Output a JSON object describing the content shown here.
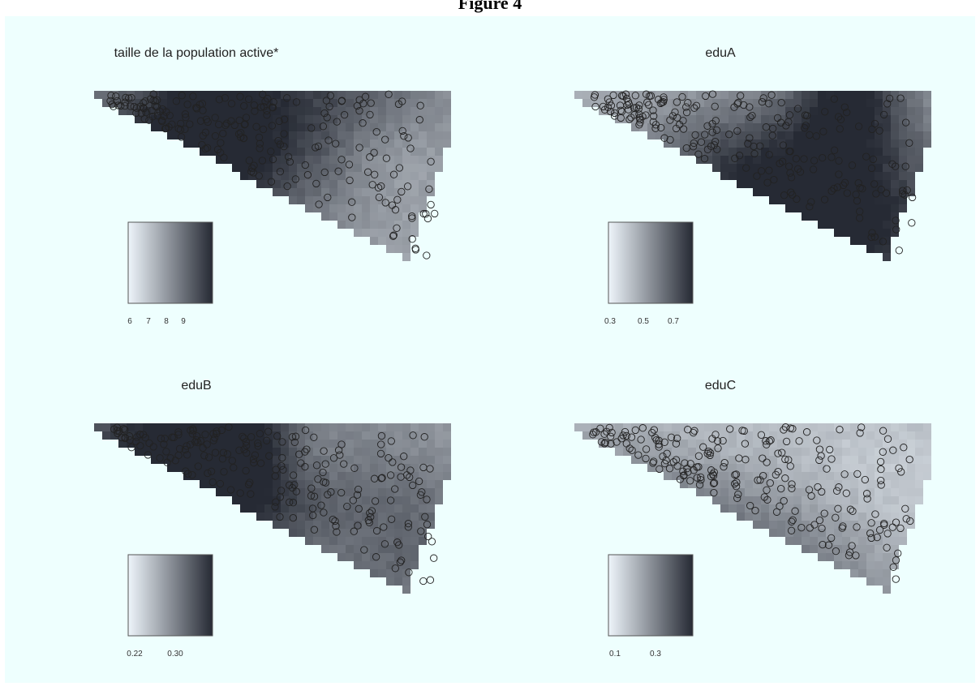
{
  "figure_title": "Figure 4",
  "chart_data": [
    {
      "type": "heatmap",
      "title": "taille de la population active*",
      "legend_ticks": [
        "6",
        "7",
        "8",
        "9"
      ],
      "colors": {
        "low": "#eef5fb",
        "high": "#262a34"
      }
    },
    {
      "type": "heatmap",
      "title": "eduA",
      "legend_ticks": [
        "0.3",
        "0.5",
        "0.7"
      ],
      "colors": {
        "low": "#eef5fb",
        "high": "#262a34"
      }
    },
    {
      "type": "heatmap",
      "title": "eduB",
      "legend_ticks": [
        "0.22",
        "0.30"
      ],
      "colors": {
        "low": "#eef5fb",
        "high": "#262a34"
      }
    },
    {
      "type": "heatmap",
      "title": "eduC",
      "legend_ticks": [
        "0.1",
        "0.3"
      ],
      "colors": {
        "low": "#eef5fb",
        "high": "#262a34"
      }
    }
  ]
}
